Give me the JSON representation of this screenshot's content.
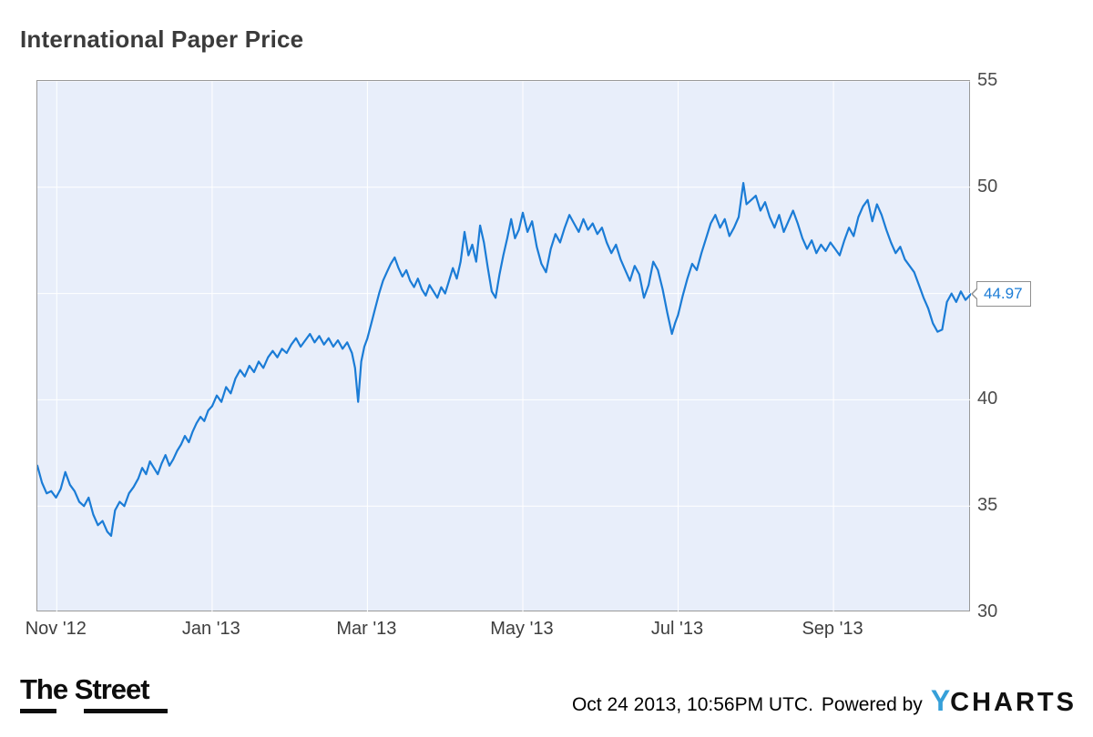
{
  "title": "International Paper Price",
  "chart_data": {
    "type": "line",
    "title": "International Paper Price",
    "xlim": [
      -0.25,
      11.77
    ],
    "ylim": [
      30,
      55
    ],
    "x_unit": "months since Nov 1 2012",
    "grid": true,
    "legend_position": "none",
    "plot_bg": "#e8eefa",
    "grid_color": "#ffffff",
    "line_color": "#1b7cd6",
    "last_value": 44.97,
    "last_value_label": "44.97",
    "y_ticks": [
      {
        "value": 55,
        "label": "55"
      },
      {
        "value": 50,
        "label": "50"
      },
      {
        "value": 45,
        "label": ""
      },
      {
        "value": 40,
        "label": "40"
      },
      {
        "value": 35,
        "label": "35"
      },
      {
        "value": 30,
        "label": "30"
      }
    ],
    "x_ticks": {
      "positions": [
        0,
        2,
        4,
        6,
        8,
        10
      ],
      "labels": [
        "Nov '12",
        "Jan '13",
        "Mar '13",
        "May '13",
        "Jul '13",
        "Sep '13"
      ]
    },
    "series": [
      {
        "name": "International Paper Price",
        "points": [
          [
            -0.25,
            36.9
          ],
          [
            -0.19,
            36.1
          ],
          [
            -0.13,
            35.6
          ],
          [
            -0.07,
            35.7
          ],
          [
            -0.01,
            35.4
          ],
          [
            0.05,
            35.8
          ],
          [
            0.11,
            36.6
          ],
          [
            0.17,
            36.0
          ],
          [
            0.23,
            35.7
          ],
          [
            0.29,
            35.2
          ],
          [
            0.35,
            35.0
          ],
          [
            0.41,
            35.4
          ],
          [
            0.47,
            34.6
          ],
          [
            0.53,
            34.1
          ],
          [
            0.59,
            34.3
          ],
          [
            0.65,
            33.8
          ],
          [
            0.7,
            33.6
          ],
          [
            0.75,
            34.8
          ],
          [
            0.81,
            35.2
          ],
          [
            0.87,
            35.0
          ],
          [
            0.93,
            35.6
          ],
          [
            0.99,
            35.9
          ],
          [
            1.05,
            36.3
          ],
          [
            1.1,
            36.8
          ],
          [
            1.15,
            36.5
          ],
          [
            1.2,
            37.1
          ],
          [
            1.25,
            36.8
          ],
          [
            1.3,
            36.5
          ],
          [
            1.35,
            37.0
          ],
          [
            1.4,
            37.4
          ],
          [
            1.45,
            36.9
          ],
          [
            1.5,
            37.2
          ],
          [
            1.55,
            37.6
          ],
          [
            1.6,
            37.9
          ],
          [
            1.65,
            38.3
          ],
          [
            1.7,
            38.0
          ],
          [
            1.75,
            38.5
          ],
          [
            1.8,
            38.9
          ],
          [
            1.85,
            39.2
          ],
          [
            1.9,
            39.0
          ],
          [
            1.95,
            39.5
          ],
          [
            2.0,
            39.7
          ],
          [
            2.06,
            40.2
          ],
          [
            2.12,
            39.9
          ],
          [
            2.18,
            40.6
          ],
          [
            2.24,
            40.3
          ],
          [
            2.3,
            41.0
          ],
          [
            2.36,
            41.4
          ],
          [
            2.42,
            41.1
          ],
          [
            2.48,
            41.6
          ],
          [
            2.54,
            41.3
          ],
          [
            2.6,
            41.8
          ],
          [
            2.66,
            41.5
          ],
          [
            2.72,
            42.0
          ],
          [
            2.78,
            42.3
          ],
          [
            2.84,
            42.0
          ],
          [
            2.9,
            42.4
          ],
          [
            2.96,
            42.2
          ],
          [
            3.02,
            42.6
          ],
          [
            3.08,
            42.9
          ],
          [
            3.14,
            42.5
          ],
          [
            3.2,
            42.8
          ],
          [
            3.26,
            43.1
          ],
          [
            3.32,
            42.7
          ],
          [
            3.38,
            43.0
          ],
          [
            3.44,
            42.6
          ],
          [
            3.5,
            42.9
          ],
          [
            3.56,
            42.5
          ],
          [
            3.62,
            42.8
          ],
          [
            3.68,
            42.4
          ],
          [
            3.74,
            42.7
          ],
          [
            3.8,
            42.2
          ],
          [
            3.84,
            41.5
          ],
          [
            3.88,
            39.9
          ],
          [
            3.92,
            41.8
          ],
          [
            3.96,
            42.5
          ],
          [
            4.0,
            42.9
          ],
          [
            4.05,
            43.6
          ],
          [
            4.1,
            44.3
          ],
          [
            4.15,
            45.0
          ],
          [
            4.2,
            45.6
          ],
          [
            4.25,
            46.0
          ],
          [
            4.3,
            46.4
          ],
          [
            4.35,
            46.7
          ],
          [
            4.4,
            46.2
          ],
          [
            4.45,
            45.8
          ],
          [
            4.5,
            46.1
          ],
          [
            4.55,
            45.6
          ],
          [
            4.6,
            45.3
          ],
          [
            4.65,
            45.7
          ],
          [
            4.7,
            45.2
          ],
          [
            4.75,
            44.9
          ],
          [
            4.8,
            45.4
          ],
          [
            4.85,
            45.1
          ],
          [
            4.9,
            44.8
          ],
          [
            4.95,
            45.3
          ],
          [
            5.0,
            45.0
          ],
          [
            5.05,
            45.6
          ],
          [
            5.1,
            46.2
          ],
          [
            5.15,
            45.7
          ],
          [
            5.2,
            46.5
          ],
          [
            5.25,
            47.9
          ],
          [
            5.3,
            46.8
          ],
          [
            5.35,
            47.3
          ],
          [
            5.4,
            46.5
          ],
          [
            5.45,
            48.2
          ],
          [
            5.5,
            47.4
          ],
          [
            5.55,
            46.2
          ],
          [
            5.6,
            45.1
          ],
          [
            5.65,
            44.8
          ],
          [
            5.7,
            45.9
          ],
          [
            5.75,
            46.8
          ],
          [
            5.8,
            47.6
          ],
          [
            5.85,
            48.5
          ],
          [
            5.9,
            47.6
          ],
          [
            5.95,
            48.0
          ],
          [
            6.0,
            48.8
          ],
          [
            6.06,
            47.9
          ],
          [
            6.12,
            48.4
          ],
          [
            6.18,
            47.2
          ],
          [
            6.24,
            46.4
          ],
          [
            6.3,
            46.0
          ],
          [
            6.36,
            47.1
          ],
          [
            6.42,
            47.8
          ],
          [
            6.48,
            47.4
          ],
          [
            6.54,
            48.1
          ],
          [
            6.6,
            48.7
          ],
          [
            6.66,
            48.3
          ],
          [
            6.72,
            47.9
          ],
          [
            6.78,
            48.5
          ],
          [
            6.84,
            48.0
          ],
          [
            6.9,
            48.3
          ],
          [
            6.96,
            47.8
          ],
          [
            7.02,
            48.1
          ],
          [
            7.08,
            47.4
          ],
          [
            7.14,
            46.9
          ],
          [
            7.2,
            47.3
          ],
          [
            7.26,
            46.6
          ],
          [
            7.32,
            46.1
          ],
          [
            7.38,
            45.6
          ],
          [
            7.44,
            46.3
          ],
          [
            7.5,
            45.9
          ],
          [
            7.56,
            44.8
          ],
          [
            7.62,
            45.4
          ],
          [
            7.68,
            46.5
          ],
          [
            7.74,
            46.1
          ],
          [
            7.8,
            45.2
          ],
          [
            7.86,
            44.1
          ],
          [
            7.92,
            43.1
          ],
          [
            7.96,
            43.6
          ],
          [
            8.0,
            44.0
          ],
          [
            8.06,
            44.9
          ],
          [
            8.12,
            45.7
          ],
          [
            8.18,
            46.4
          ],
          [
            8.24,
            46.1
          ],
          [
            8.3,
            46.9
          ],
          [
            8.36,
            47.6
          ],
          [
            8.42,
            48.3
          ],
          [
            8.48,
            48.7
          ],
          [
            8.54,
            48.1
          ],
          [
            8.6,
            48.5
          ],
          [
            8.66,
            47.7
          ],
          [
            8.72,
            48.1
          ],
          [
            8.78,
            48.6
          ],
          [
            8.84,
            50.2
          ],
          [
            8.88,
            49.2
          ],
          [
            8.94,
            49.4
          ],
          [
            9.0,
            49.6
          ],
          [
            9.06,
            48.9
          ],
          [
            9.12,
            49.3
          ],
          [
            9.18,
            48.6
          ],
          [
            9.24,
            48.1
          ],
          [
            9.3,
            48.7
          ],
          [
            9.36,
            47.9
          ],
          [
            9.42,
            48.4
          ],
          [
            9.48,
            48.9
          ],
          [
            9.54,
            48.3
          ],
          [
            9.6,
            47.6
          ],
          [
            9.66,
            47.1
          ],
          [
            9.72,
            47.5
          ],
          [
            9.78,
            46.9
          ],
          [
            9.84,
            47.3
          ],
          [
            9.9,
            47.0
          ],
          [
            9.96,
            47.4
          ],
          [
            10.02,
            47.1
          ],
          [
            10.08,
            46.8
          ],
          [
            10.14,
            47.5
          ],
          [
            10.2,
            48.1
          ],
          [
            10.26,
            47.7
          ],
          [
            10.32,
            48.6
          ],
          [
            10.38,
            49.1
          ],
          [
            10.44,
            49.4
          ],
          [
            10.5,
            48.4
          ],
          [
            10.56,
            49.2
          ],
          [
            10.62,
            48.7
          ],
          [
            10.68,
            48.0
          ],
          [
            10.74,
            47.4
          ],
          [
            10.8,
            46.9
          ],
          [
            10.86,
            47.2
          ],
          [
            10.92,
            46.6
          ],
          [
            10.98,
            46.3
          ],
          [
            11.04,
            46.0
          ],
          [
            11.1,
            45.4
          ],
          [
            11.16,
            44.8
          ],
          [
            11.22,
            44.3
          ],
          [
            11.28,
            43.6
          ],
          [
            11.34,
            43.2
          ],
          [
            11.4,
            43.3
          ],
          [
            11.46,
            44.6
          ],
          [
            11.52,
            45.0
          ],
          [
            11.58,
            44.6
          ],
          [
            11.64,
            45.1
          ],
          [
            11.7,
            44.7
          ],
          [
            11.77,
            44.97
          ]
        ]
      }
    ]
  },
  "footer": {
    "logo_left_text": "The Street",
    "timestamp": "Oct 24 2013, 10:56PM UTC.",
    "powered_by": "Powered by",
    "brand_y": "Y",
    "brand_rest": "CHARTS",
    "brand_blue": "#36a0d9"
  }
}
